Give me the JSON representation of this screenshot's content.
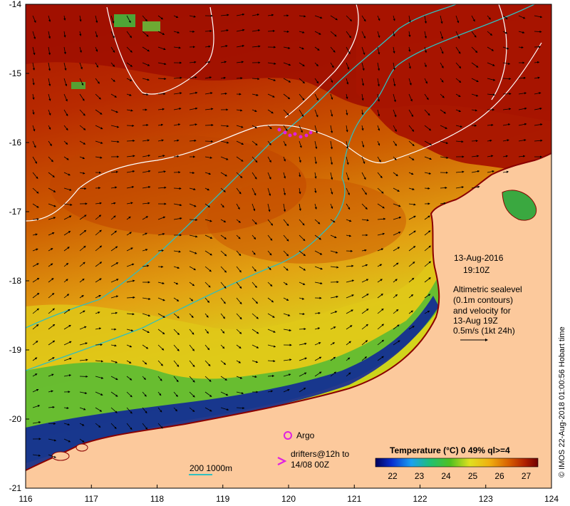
{
  "map": {
    "lon_ticks": [
      "116",
      "117",
      "118",
      "119",
      "120",
      "121",
      "122",
      "123",
      "124"
    ],
    "lat_ticks": [
      "-14",
      "-15",
      "-16",
      "-17",
      "-18",
      "-19",
      "-20",
      "-21"
    ],
    "date": "13-Aug-2016",
    "time": "19:10Z",
    "altimetry_note": [
      "Altimetric sealevel",
      "(0.1m contours)",
      "and velocity for",
      "13-Aug 19Z",
      "0.5m/s (1kt 24h)"
    ],
    "argo_label": "Argo",
    "drifters_label": [
      "drifters@12h to",
      "14/08 00Z"
    ],
    "bathy_label": "200  1000m",
    "colorbar_title": "Temperature (°C) 0 49% ql>=4",
    "colorbar_ticks": [
      "22",
      "23",
      "24",
      "25",
      "26",
      "27"
    ],
    "credit": "© IMOS 22-Aug-2018 01:00:56 Hobart time",
    "colors": {
      "ocean_hot": "#a81400",
      "ocean_mid": "#cc5500",
      "ocean_warm": "#e09a10",
      "ocean_cool": "#d9dd1a",
      "ocean_cold": "#2ea838",
      "ocean_coldest": "#0a1a9a",
      "land": "#fcc99c",
      "bathy_contour": "#2fbfbf",
      "sealevel_contour": "#ffffff",
      "argo": "#e020e0",
      "drifters": "#e020e0"
    }
  }
}
